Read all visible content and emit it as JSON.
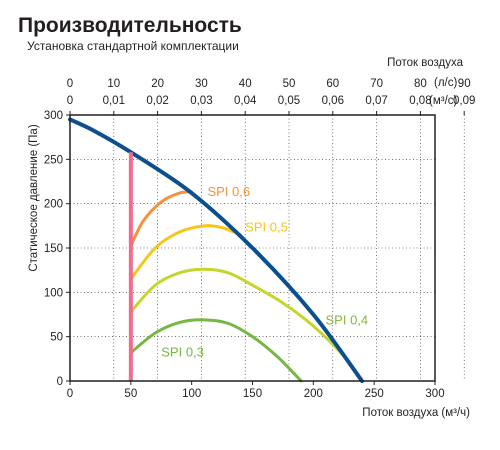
{
  "chart_data": {
    "type": "line",
    "title": "Производительность",
    "subtitle": "Установка стандартной комплектации",
    "xlabel": "Поток воздуха (м³/ч)",
    "ylabel": "Статическое давление (Па)",
    "top_axis_title": "Поток воздуха",
    "top_axis_unit_ls": "(л/с)",
    "top_axis_unit_m3s": "(м³/с)",
    "xlim": [
      0,
      300
    ],
    "ylim": [
      0,
      300
    ],
    "x_ticks": [
      "0",
      "50",
      "100",
      "150",
      "200",
      "250",
      "300"
    ],
    "y_ticks": [
      "0",
      "50",
      "100",
      "150",
      "200",
      "250",
      "300"
    ],
    "top_ticks_ls": [
      "0",
      "10",
      "20",
      "30",
      "40",
      "50",
      "60",
      "70",
      "80",
      "90"
    ],
    "top_ticks_m3s": [
      "0",
      "0,01",
      "0,02",
      "0,03",
      "0,04",
      "0,05",
      "0,06",
      "0,07",
      "0,08",
      "0,09"
    ],
    "grid": true,
    "series": [
      {
        "color": "#0b4f8f",
        "x": [
          0,
          20,
          50,
          100,
          150,
          200,
          240
        ],
        "y": [
          295,
          282,
          258,
          212,
          150,
          75,
          0
        ]
      },
      {
        "color": "#f26a8d",
        "x": [
          50,
          50
        ],
        "y": [
          0,
          258
        ]
      },
      {
        "name": "SPI 0,6",
        "color": "#f4933b",
        "x": [
          50,
          60,
          75,
          90,
          100
        ],
        "y": [
          152,
          180,
          202,
          212,
          213
        ]
      },
      {
        "name": "SPI 0,5",
        "color": "#f8c51c",
        "x": [
          50,
          70,
          90,
          110,
          125,
          140
        ],
        "y": [
          115,
          150,
          168,
          175,
          173,
          165
        ]
      },
      {
        "name": "SPI 0,4",
        "color": "#c5d52d",
        "x": [
          50,
          70,
          90,
          110,
          130,
          150,
          175,
          200,
          225,
          240
        ],
        "y": [
          78,
          108,
          122,
          126,
          122,
          108,
          88,
          62,
          28,
          0
        ]
      },
      {
        "name": "SPI 0,3",
        "color": "#74b843",
        "x": [
          50,
          70,
          90,
          110,
          130,
          150,
          170,
          190
        ],
        "y": [
          32,
          54,
          66,
          69,
          65,
          50,
          28,
          0
        ]
      }
    ],
    "annotations": [
      {
        "text": "SPI 0,6",
        "color": "#f4933b",
        "x": 113,
        "y": 213
      },
      {
        "text": "SPI 0,5",
        "color": "#f8c51c",
        "x": 144,
        "y": 173
      },
      {
        "text": "SPI 0,4",
        "color": "#8cb43e",
        "x": 210,
        "y": 68
      },
      {
        "text": "SPI 0,3",
        "color": "#74b843",
        "x": 75,
        "y": 32
      }
    ]
  }
}
